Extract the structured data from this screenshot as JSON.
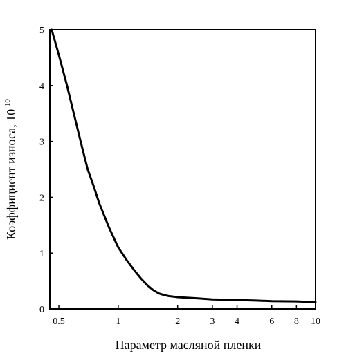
{
  "chart_data": {
    "type": "line",
    "title": "",
    "xlabel": "Параметр масляной пленки",
    "ylabel": "Коэффициент износа, 10",
    "ylabel_superscript": "-10",
    "x_scale": "log",
    "xlim": [
      0.45,
      10
    ],
    "ylim": [
      0,
      5
    ],
    "grid": false,
    "x_ticks": [
      0.5,
      1,
      2,
      3,
      4,
      6,
      8,
      10
    ],
    "x_tick_labels": [
      "0.5",
      "1",
      "2",
      "3",
      "4",
      "6",
      "8",
      "10"
    ],
    "y_ticks": [
      0,
      1,
      2,
      3,
      4,
      5
    ],
    "y_tick_labels": [
      "0",
      "1",
      "2",
      "3",
      "4",
      "5"
    ],
    "series": [
      {
        "color": "#000000",
        "x": [
          0.46,
          0.5,
          0.55,
          0.6,
          0.65,
          0.7,
          0.75,
          0.8,
          0.9,
          1.0,
          1.1,
          1.2,
          1.3,
          1.4,
          1.5,
          1.6,
          1.7,
          1.8,
          2.0,
          2.5,
          3.0,
          4.0,
          5.0,
          6.0,
          8.0,
          10.0
        ],
        "y": [
          5.0,
          4.55,
          4.0,
          3.45,
          2.95,
          2.5,
          2.2,
          1.9,
          1.45,
          1.1,
          0.88,
          0.7,
          0.55,
          0.43,
          0.34,
          0.28,
          0.25,
          0.23,
          0.21,
          0.19,
          0.17,
          0.16,
          0.15,
          0.14,
          0.135,
          0.12
        ]
      }
    ]
  }
}
